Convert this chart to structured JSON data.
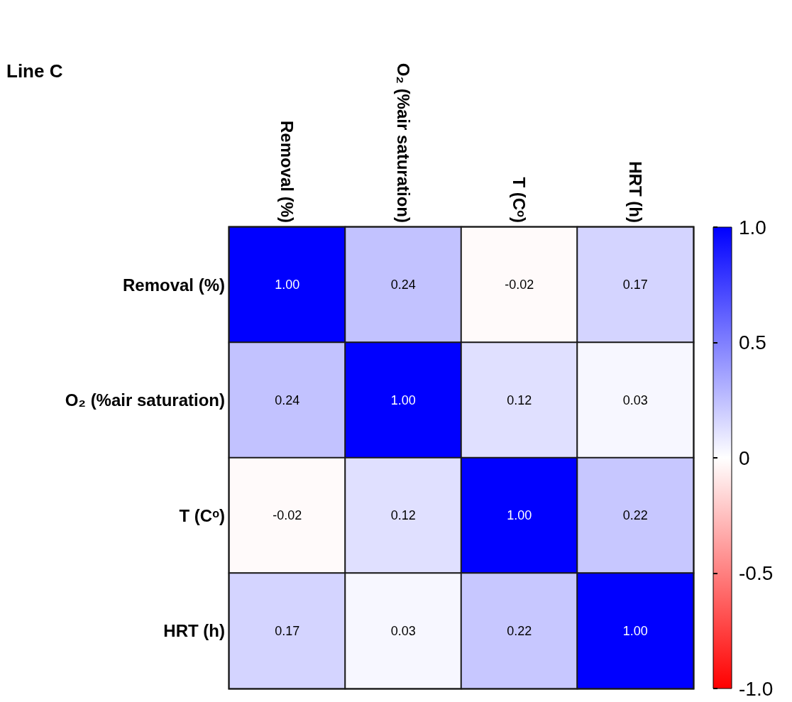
{
  "chart_data": {
    "type": "heatmap",
    "title": "Line C",
    "categories": [
      "Removal (%)",
      "O₂ (%air saturation)",
      "T (Cᵒ)",
      "HRT (h)"
    ],
    "y_categories": [
      "Removal (%)",
      "O₂ (%air saturation)",
      "T (Cᵒ)",
      "HRT (h)"
    ],
    "cells": [
      [
        1.0,
        0.24,
        -0.02,
        0.17
      ],
      [
        0.24,
        1.0,
        0.12,
        0.03
      ],
      [
        -0.02,
        0.12,
        1.0,
        0.22
      ],
      [
        0.17,
        0.03,
        0.22,
        1.0
      ]
    ],
    "cell_labels": [
      [
        "1.00",
        "0.24",
        "-0.02",
        "0.17"
      ],
      [
        "0.24",
        "1.00",
        "0.12",
        "0.03"
      ],
      [
        "-0.02",
        "0.12",
        "1.00",
        "0.22"
      ],
      [
        "0.17",
        "0.03",
        "0.22",
        "1.00"
      ]
    ],
    "clim": [
      -1,
      1
    ],
    "cticks": [
      {
        "value": -1,
        "label": "-1.0"
      },
      {
        "value": -0.5,
        "label": "-0.5"
      },
      {
        "value": 0,
        "label": "0"
      },
      {
        "value": 0.5,
        "label": "0.5"
      },
      {
        "value": 1,
        "label": "1.0"
      }
    ]
  }
}
